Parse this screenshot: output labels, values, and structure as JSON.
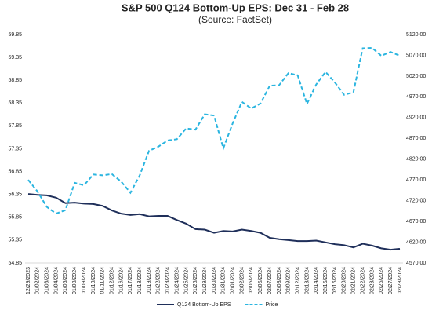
{
  "chart_data": {
    "type": "line",
    "title": "S&P 500 Q124 Bottom-Up EPS: Dec 31 - Feb 28",
    "subtitle": "(Source: FactSet)",
    "categories": [
      "12/29/2023",
      "01/02/2024",
      "01/03/2024",
      "01/04/2024",
      "01/05/2024",
      "01/08/2024",
      "01/09/2024",
      "01/10/2024",
      "01/11/2024",
      "01/12/2024",
      "01/16/2024",
      "01/17/2024",
      "01/18/2024",
      "01/19/2024",
      "01/22/2024",
      "01/23/2024",
      "01/24/2024",
      "01/25/2024",
      "01/26/2024",
      "01/29/2024",
      "01/30/2024",
      "01/31/2024",
      "02/01/2024",
      "02/02/2024",
      "02/05/2024",
      "02/06/2024",
      "02/07/2024",
      "02/08/2024",
      "02/09/2024",
      "02/12/2024",
      "02/13/2024",
      "02/14/2024",
      "02/15/2024",
      "02/16/2024",
      "02/20/2024",
      "02/21/2024",
      "02/22/2024",
      "02/23/2024",
      "02/26/2024",
      "02/27/2024",
      "02/28/2024"
    ],
    "series": [
      {
        "name": "Q124 Bottom-Up EPS",
        "color": "#1f2f5a",
        "dash": false,
        "values": [
          56.36,
          56.34,
          56.33,
          56.28,
          56.16,
          56.17,
          56.15,
          56.14,
          56.1,
          56.0,
          55.93,
          55.9,
          55.92,
          55.87,
          55.88,
          55.88,
          55.79,
          55.71,
          55.59,
          55.58,
          55.51,
          55.55,
          55.54,
          55.58,
          55.55,
          55.51,
          55.4,
          55.37,
          55.35,
          55.33,
          55.33,
          55.34,
          55.3,
          55.26,
          55.24,
          55.19,
          55.27,
          55.23,
          55.17,
          55.14,
          55.16
        ]
      },
      {
        "name": "Price",
        "color": "#2bb5e0",
        "dash": true,
        "axis": "y2",
        "values": [
          4770,
          4742,
          4705,
          4689,
          4697,
          4763,
          4757,
          4783,
          4781,
          4784,
          4766,
          4739,
          4781,
          4840,
          4850,
          4865,
          4868,
          4894,
          4891,
          4928,
          4925,
          4846,
          4906,
          4958,
          4942,
          4954,
          4997,
          4998,
          5027,
          5022,
          4953,
          5000,
          5030,
          5005,
          4975,
          4981,
          5087,
          5088,
          5069,
          5078,
          5069
        ]
      }
    ],
    "ylim": [
      54.85,
      59.85
    ],
    "yticks": [
      54.85,
      55.35,
      55.85,
      56.35,
      56.85,
      57.35,
      57.85,
      58.35,
      58.85,
      59.35,
      59.85
    ],
    "y2lim": [
      4570,
      5120
    ],
    "y2ticks": [
      {
        "value": 4570,
        "label": "4570.00"
      },
      {
        "value": 4620,
        "label": "4620.00"
      },
      {
        "value": 4670,
        "label": "4670.00"
      },
      {
        "value": 4720,
        "label": "4720.00"
      },
      {
        "value": 4770,
        "label": "4770.00"
      },
      {
        "value": 4820,
        "label": "4820.00"
      },
      {
        "value": 4870,
        "label": "4870.00"
      },
      {
        "value": 4920,
        "label": "4920.00"
      },
      {
        "value": 4970,
        "label": "4970.00"
      },
      {
        "value": 5020,
        "label": "5020.00"
      },
      {
        "value": 5070,
        "label": "5070.00"
      },
      {
        "value": 5120,
        "label": "5120.00"
      }
    ],
    "grid": false,
    "legend": "bottom"
  }
}
